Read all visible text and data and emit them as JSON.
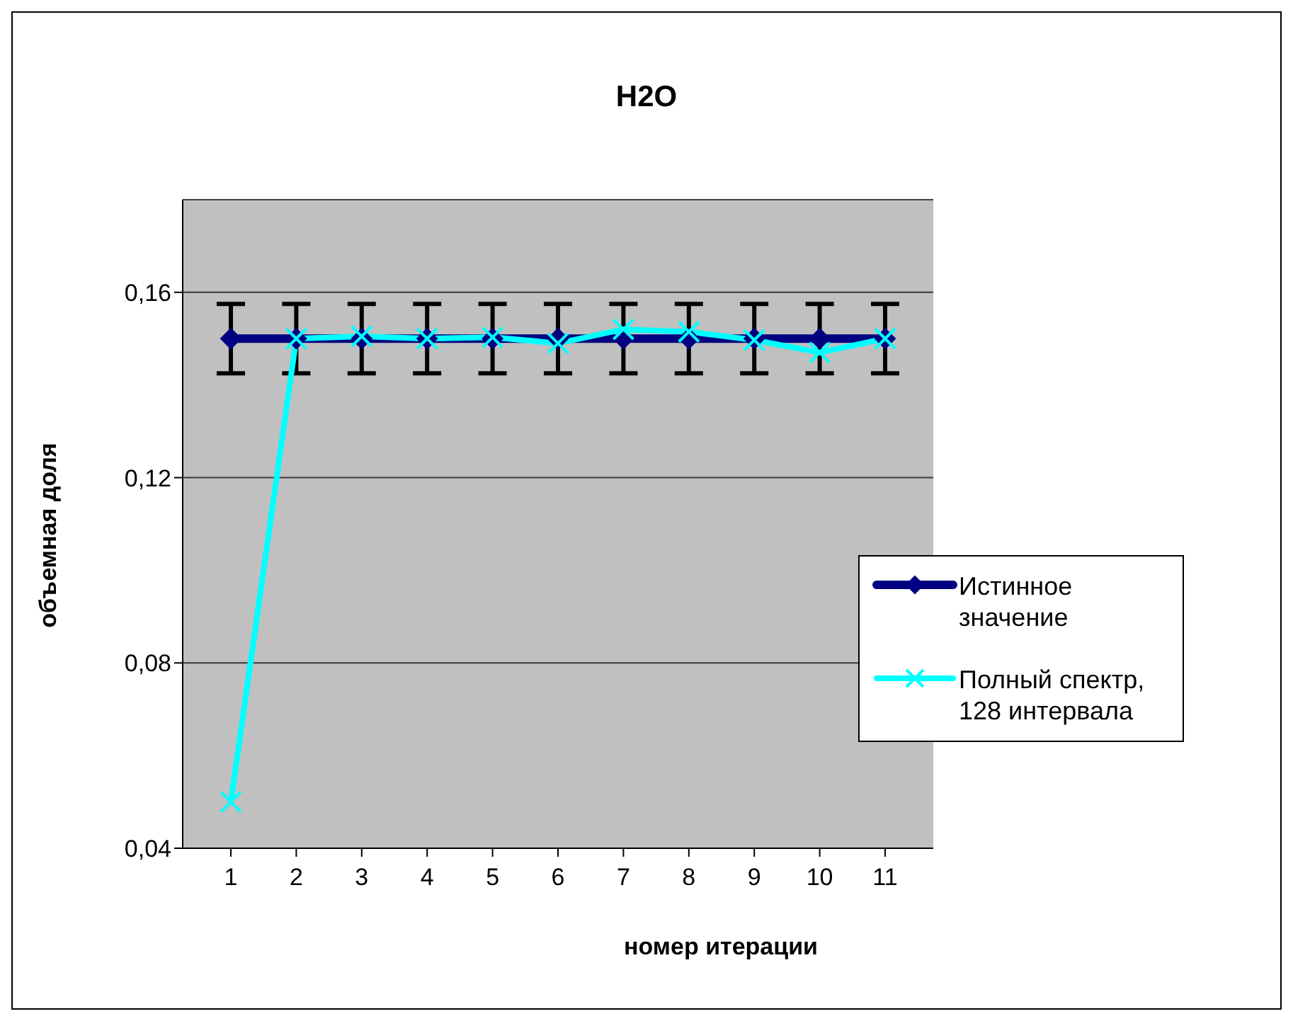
{
  "chart_data": {
    "type": "line",
    "title": "H2O",
    "xlabel": "номер итерации",
    "ylabel": "объемная доля",
    "categories": [
      "1",
      "2",
      "3",
      "4",
      "5",
      "6",
      "7",
      "8",
      "9",
      "10",
      "11"
    ],
    "series": [
      {
        "name": "Истинное значение",
        "color": "#000080",
        "marker": "diamond",
        "values": [
          0.15,
          0.15,
          0.15,
          0.15,
          0.15,
          0.15,
          0.15,
          0.15,
          0.15,
          0.15,
          0.15
        ],
        "errors": [
          0.0075,
          0.0075,
          0.0075,
          0.0075,
          0.0075,
          0.0075,
          0.0075,
          0.0075,
          0.0075,
          0.0075,
          0.0075
        ]
      },
      {
        "name": "Полный спектр, 128 интервала",
        "color": "#00ffff",
        "marker": "cross",
        "values": [
          0.05,
          0.15,
          0.1505,
          0.15,
          0.1503,
          0.149,
          0.152,
          0.1515,
          0.1497,
          0.147,
          0.15
        ]
      }
    ],
    "ylim": [
      0.04,
      0.18
    ],
    "yticks": [
      {
        "value": 0.04,
        "label": "0,04"
      },
      {
        "value": 0.08,
        "label": "0,08"
      },
      {
        "value": 0.12,
        "label": "0,12"
      },
      {
        "value": 0.16,
        "label": "0,16"
      }
    ],
    "grid": "y",
    "legend": "right"
  }
}
